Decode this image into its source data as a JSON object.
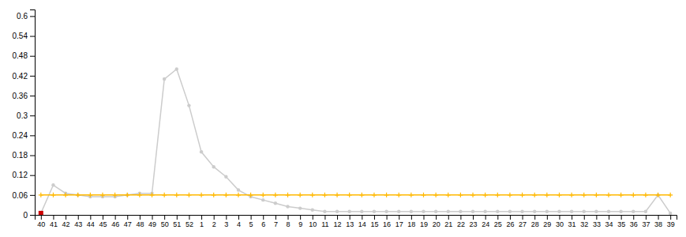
{
  "chart_data": {
    "type": "line",
    "categories": [
      "40",
      "41",
      "42",
      "43",
      "44",
      "45",
      "46",
      "47",
      "48",
      "49",
      "50",
      "51",
      "52",
      "1",
      "2",
      "3",
      "4",
      "5",
      "6",
      "7",
      "8",
      "9",
      "10",
      "11",
      "12",
      "13",
      "14",
      "15",
      "16",
      "17",
      "18",
      "19",
      "20",
      "21",
      "22",
      "23",
      "24",
      "25",
      "26",
      "27",
      "28",
      "29",
      "30",
      "31",
      "32",
      "33",
      "34",
      "35",
      "36",
      "37",
      "38",
      "39"
    ],
    "series": [
      {
        "color": "#cccccc",
        "marker": "circle",
        "line_style": "solid",
        "values": [
          0.005,
          0.09,
          0.065,
          0.06,
          0.055,
          0.055,
          0.055,
          0.06,
          0.065,
          0.065,
          0.41,
          0.44,
          0.33,
          0.19,
          0.145,
          0.115,
          0.075,
          0.055,
          0.045,
          0.035,
          0.025,
          0.02,
          0.015,
          0.01,
          0.01,
          0.01,
          0.01,
          0.01,
          0.01,
          0.01,
          0.01,
          0.01,
          0.01,
          0.01,
          0.01,
          0.01,
          0.01,
          0.01,
          0.01,
          0.01,
          0.01,
          0.01,
          0.01,
          0.01,
          0.01,
          0.01,
          0.01,
          0.01,
          0.01,
          0.01,
          0.06,
          0.005
        ]
      },
      {
        "color": "#FFB800",
        "marker": "plus",
        "line_style": "solid",
        "values": [
          0.06,
          0.06,
          0.06,
          0.06,
          0.06,
          0.06,
          0.06,
          0.06,
          0.06,
          0.06,
          0.06,
          0.06,
          0.06,
          0.06,
          0.06,
          0.06,
          0.06,
          0.06,
          0.06,
          0.06,
          0.06,
          0.06,
          0.06,
          0.06,
          0.06,
          0.06,
          0.06,
          0.06,
          0.06,
          0.06,
          0.06,
          0.06,
          0.06,
          0.06,
          0.06,
          0.06,
          0.06,
          0.06,
          0.06,
          0.06,
          0.06,
          0.06,
          0.06,
          0.06,
          0.06,
          0.06,
          0.06,
          0.06,
          0.06,
          0.06,
          0.06,
          0.06
        ]
      },
      {
        "color": "#cc0000",
        "marker": "square",
        "line_style": "none",
        "values": [
          0.005,
          null,
          null,
          null,
          null,
          null,
          null,
          null,
          null,
          null,
          null,
          null,
          null,
          null,
          null,
          null,
          null,
          null,
          null,
          null,
          null,
          null,
          null,
          null,
          null,
          null,
          null,
          null,
          null,
          null,
          null,
          null,
          null,
          null,
          null,
          null,
          null,
          null,
          null,
          null,
          null,
          null,
          null,
          null,
          null,
          null,
          null,
          null,
          null,
          null,
          null,
          null
        ]
      }
    ],
    "ylim": [
      0,
      0.62
    ],
    "yticks": [
      0,
      0.06,
      0.12,
      0.18,
      0.24,
      0.3,
      0.36,
      0.42,
      0.48,
      0.54,
      0.6
    ],
    "grid": false
  }
}
